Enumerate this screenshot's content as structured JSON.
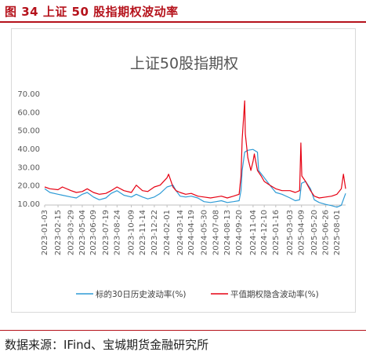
{
  "figure": {
    "title": "图 34 上证 50 股指期权波动率",
    "source": "数据来源：IFind、宝城期货金融研究所"
  },
  "colors": {
    "accent": "#b5121b",
    "hist_vol": "#2e9bd6",
    "implied_vol": "#e60012"
  },
  "chart_data": {
    "type": "line",
    "title": "上证50股指期权",
    "xlabel": "",
    "ylabel": "",
    "ylim": [
      10,
      70
    ],
    "yticks": [
      "10.00",
      "20.00",
      "30.00",
      "40.00",
      "50.00",
      "60.00",
      "70.00"
    ],
    "x_tick_labels": [
      "2023-01-03",
      "2023-02-15",
      "2023-03-29",
      "2023-05-04",
      "2023-06-09",
      "2023-07-19",
      "2023-08-24",
      "2023-10-09",
      "2023-11-14",
      "2023-12-22",
      "2024-02-01",
      "2024-03-14",
      "2024-04-19",
      "2024-05-30",
      "2024-07-08",
      "2024-08-13",
      "2024-09-20",
      "2024-11-04",
      "2024-12-10",
      "2025-01-16",
      "2025-03-03",
      "2025-04-09",
      "2025-05-20",
      "2025-06-26",
      "2025-08-01"
    ],
    "x_range": [
      "2023-01-03",
      "2025-08-29"
    ],
    "grid": false,
    "legend_position": "bottom",
    "series": [
      {
        "name": "标的30日历史波动率(%)",
        "color": "#2e9bd6",
        "points": [
          [
            "2023-01-03",
            18
          ],
          [
            "2023-01-20",
            16
          ],
          [
            "2023-02-15",
            15
          ],
          [
            "2023-03-01",
            14.5
          ],
          [
            "2023-03-29",
            13.5
          ],
          [
            "2023-04-15",
            13
          ],
          [
            "2023-05-04",
            15
          ],
          [
            "2023-05-20",
            16
          ],
          [
            "2023-06-09",
            13.5
          ],
          [
            "2023-06-28",
            12
          ],
          [
            "2023-07-19",
            13
          ],
          [
            "2023-08-05",
            15.5
          ],
          [
            "2023-08-24",
            17
          ],
          [
            "2023-09-15",
            14.5
          ],
          [
            "2023-10-09",
            13.5
          ],
          [
            "2023-10-25",
            15
          ],
          [
            "2023-11-14",
            13.5
          ],
          [
            "2023-12-01",
            12.5
          ],
          [
            "2023-12-22",
            13.5
          ],
          [
            "2024-01-10",
            15.5
          ],
          [
            "2024-02-01",
            19
          ],
          [
            "2024-02-20",
            20
          ],
          [
            "2024-03-01",
            17
          ],
          [
            "2024-03-14",
            14
          ],
          [
            "2024-04-01",
            13.5
          ],
          [
            "2024-04-19",
            14
          ],
          [
            "2024-05-10",
            13
          ],
          [
            "2024-05-30",
            11
          ],
          [
            "2024-06-20",
            10.5
          ],
          [
            "2024-07-08",
            11
          ],
          [
            "2024-07-25",
            11.5
          ],
          [
            "2024-08-13",
            10.5
          ],
          [
            "2024-09-02",
            11
          ],
          [
            "2024-09-20",
            11.5
          ],
          [
            "2024-09-26",
            17
          ],
          [
            "2024-09-30",
            28
          ],
          [
            "2024-10-08",
            38
          ],
          [
            "2024-10-18",
            39
          ],
          [
            "2024-11-04",
            39.5
          ],
          [
            "2024-11-18",
            38
          ],
          [
            "2024-11-22",
            28
          ],
          [
            "2024-12-10",
            24
          ],
          [
            "2024-12-28",
            20
          ],
          [
            "2025-01-16",
            16
          ],
          [
            "2025-02-05",
            15
          ],
          [
            "2025-03-03",
            13
          ],
          [
            "2025-03-20",
            11.5
          ],
          [
            "2025-04-03",
            12
          ],
          [
            "2025-04-09",
            21
          ],
          [
            "2025-04-22",
            22
          ],
          [
            "2025-05-08",
            18
          ],
          [
            "2025-05-20",
            12
          ],
          [
            "2025-06-05",
            10.5
          ],
          [
            "2025-06-26",
            9.5
          ],
          [
            "2025-07-15",
            8.8
          ],
          [
            "2025-08-01",
            8
          ],
          [
            "2025-08-15",
            9
          ],
          [
            "2025-08-29",
            15.5
          ]
        ]
      },
      {
        "name": "平值期权隐含波动率(%)",
        "color": "#e60012",
        "points": [
          [
            "2023-01-03",
            19
          ],
          [
            "2023-01-20",
            18
          ],
          [
            "2023-02-15",
            17.5
          ],
          [
            "2023-03-01",
            19
          ],
          [
            "2023-03-29",
            17
          ],
          [
            "2023-04-15",
            16
          ],
          [
            "2023-05-04",
            16.5
          ],
          [
            "2023-05-20",
            18
          ],
          [
            "2023-06-09",
            16
          ],
          [
            "2023-06-28",
            15
          ],
          [
            "2023-07-19",
            15.5
          ],
          [
            "2023-08-05",
            17
          ],
          [
            "2023-08-24",
            19
          ],
          [
            "2023-09-15",
            17
          ],
          [
            "2023-10-09",
            16
          ],
          [
            "2023-10-25",
            20
          ],
          [
            "2023-11-14",
            17
          ],
          [
            "2023-12-01",
            16.5
          ],
          [
            "2023-12-22",
            19
          ],
          [
            "2024-01-10",
            20
          ],
          [
            "2024-02-01",
            24
          ],
          [
            "2024-02-06",
            26
          ],
          [
            "2024-02-20",
            19
          ],
          [
            "2024-03-01",
            17
          ],
          [
            "2024-03-14",
            16
          ],
          [
            "2024-04-01",
            15
          ],
          [
            "2024-04-19",
            15.5
          ],
          [
            "2024-05-10",
            14
          ],
          [
            "2024-05-30",
            13.5
          ],
          [
            "2024-06-20",
            13
          ],
          [
            "2024-07-08",
            13.5
          ],
          [
            "2024-07-25",
            14
          ],
          [
            "2024-08-13",
            13
          ],
          [
            "2024-09-02",
            14
          ],
          [
            "2024-09-20",
            15
          ],
          [
            "2024-09-26",
            25
          ],
          [
            "2024-09-30",
            45
          ],
          [
            "2024-10-08",
            66
          ],
          [
            "2024-10-10",
            48
          ],
          [
            "2024-10-18",
            35
          ],
          [
            "2024-10-28",
            28
          ],
          [
            "2024-11-04",
            33
          ],
          [
            "2024-11-08",
            37
          ],
          [
            "2024-11-18",
            28
          ],
          [
            "2024-11-30",
            25
          ],
          [
            "2024-12-10",
            22
          ],
          [
            "2024-12-28",
            20
          ],
          [
            "2025-01-16",
            18
          ],
          [
            "2025-02-05",
            17
          ],
          [
            "2025-03-03",
            17
          ],
          [
            "2025-03-20",
            16
          ],
          [
            "2025-04-03",
            17
          ],
          [
            "2025-04-07",
            43
          ],
          [
            "2025-04-10",
            25
          ],
          [
            "2025-04-22",
            22
          ],
          [
            "2025-05-08",
            17
          ],
          [
            "2025-05-20",
            14
          ],
          [
            "2025-06-05",
            13
          ],
          [
            "2025-06-26",
            13.5
          ],
          [
            "2025-07-15",
            14
          ],
          [
            "2025-08-01",
            15
          ],
          [
            "2025-08-15",
            18
          ],
          [
            "2025-08-22",
            26
          ],
          [
            "2025-08-29",
            18
          ]
        ]
      }
    ]
  }
}
